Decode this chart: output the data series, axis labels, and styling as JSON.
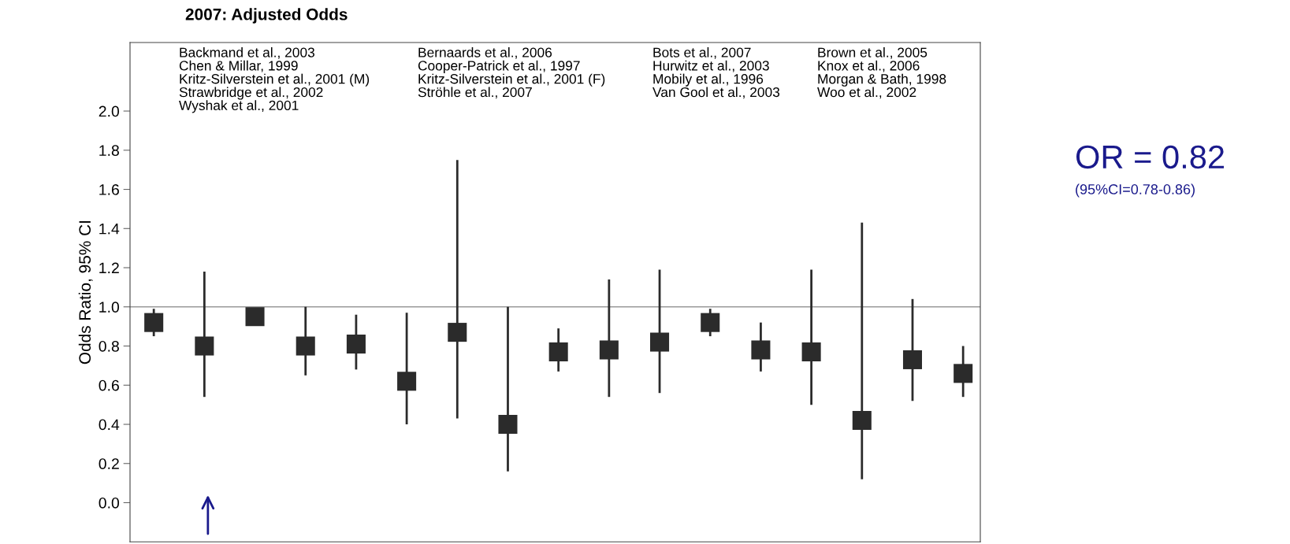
{
  "chart_data": {
    "type": "scatter",
    "title": "2007: Adjusted Odds",
    "ylabel": "Odds Ratio, 95% CI",
    "categories": [
      null,
      null,
      null,
      null,
      null,
      null,
      null,
      null,
      null,
      null,
      null,
      null,
      null,
      null,
      null,
      null,
      null
    ],
    "series": [
      {
        "color": "#2b2b2b",
        "marker": "square",
        "values": [
          0.92,
          0.8,
          0.95,
          0.8,
          0.81,
          0.62,
          0.87,
          0.4,
          0.77,
          0.78,
          0.82,
          0.92,
          0.78,
          0.77,
          0.42,
          0.73,
          0.66
        ],
        "errors": [
          [
            0.85,
            0.99
          ],
          [
            0.54,
            1.18
          ],
          [
            0.95,
            0.99
          ],
          [
            0.65,
            1.0
          ],
          [
            0.68,
            0.96
          ],
          [
            0.4,
            0.97
          ],
          [
            0.43,
            1.75
          ],
          [
            0.16,
            1.0
          ],
          [
            0.67,
            0.89
          ],
          [
            0.54,
            1.14
          ],
          [
            0.56,
            1.19
          ],
          [
            0.85,
            0.99
          ],
          [
            0.67,
            0.92
          ],
          [
            0.5,
            1.19
          ],
          [
            0.12,
            1.43
          ],
          [
            0.52,
            1.04
          ],
          [
            0.54,
            0.8
          ]
        ]
      }
    ],
    "ylim": [
      -0.2,
      2.35
    ],
    "yticks": [
      {
        "value": 0,
        "label": "0.0"
      },
      0.2,
      0.4,
      0.6,
      0.8,
      {
        "value": 1,
        "label": "1.0"
      },
      1.2,
      1.4,
      1.6,
      1.8,
      {
        "value": 2,
        "label": "2.0"
      }
    ],
    "tick_labels": "y",
    "grid": false,
    "legend": false,
    "ref_lines": [
      {
        "axis": "y",
        "value": 1,
        "color": "#999999"
      }
    ],
    "annotations": [
      "Backmand et al., 2003\nChen & Millar, 1999\nKritz-Silverstein et al., 2001 (M)\nStrawbridge et al., 2002\nWyshak et al., 2001",
      "Bernaards et al., 2006\nCooper-Patrick et al., 1997\nKritz-Silverstein et al., 2001 (F)\nStröhle et al., 2007",
      "Bots et al., 2007\nHurwitz et al., 2003\nMobily et al., 1996\nVan Gool et al., 2003",
      "Brown et al., 2005\nKnox et al., 2006\nMorgan & Bath, 1998\nWoo et al., 2002",
      "OR = 0.82",
      "(95%CI=0.78-0.86)"
    ]
  }
}
